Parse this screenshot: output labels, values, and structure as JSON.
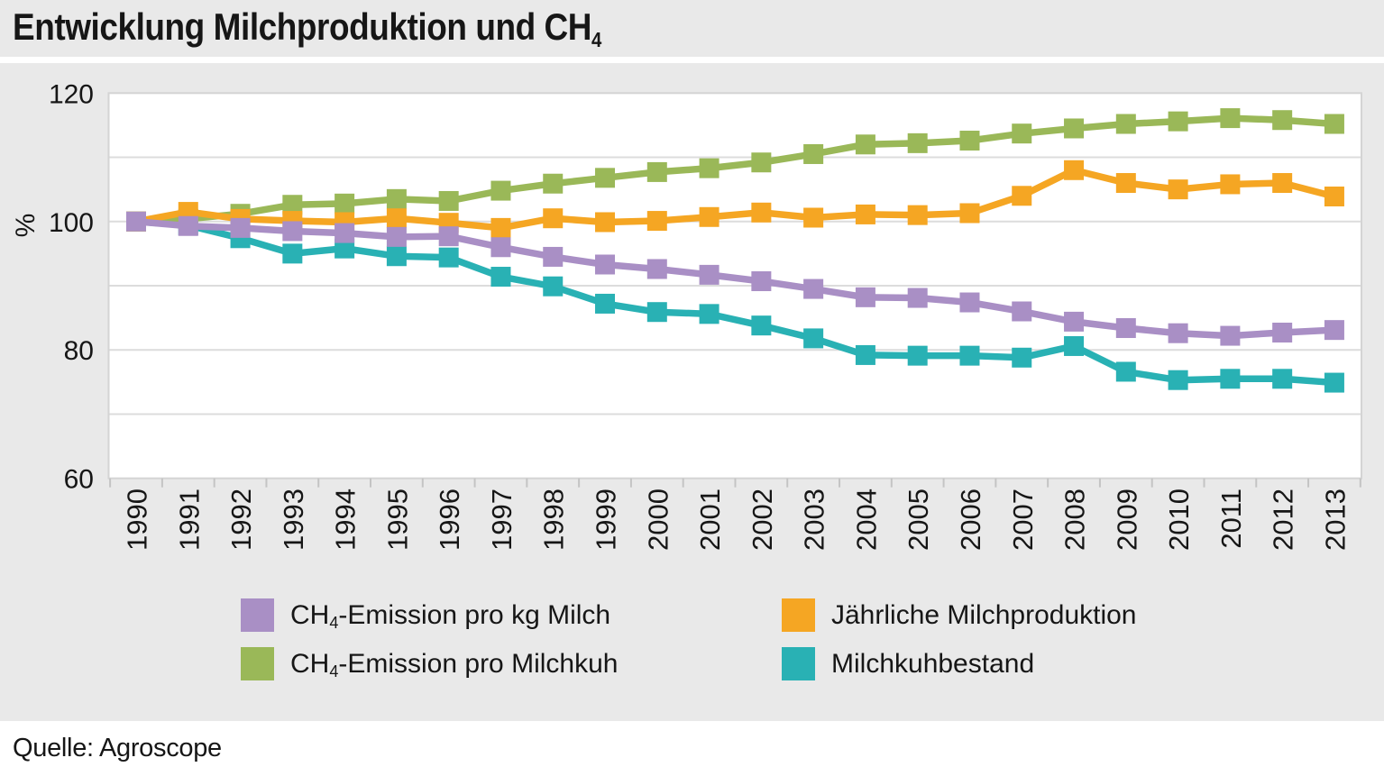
{
  "page": {
    "title_main": "Entwicklung Milchproduktion und CH",
    "title_sub": "4",
    "source": "Quelle: Agroscope"
  },
  "axes": {
    "y_unit": "%",
    "y_tick_labels": [
      120,
      100,
      80,
      60
    ],
    "y_min": 60,
    "y_max": 120,
    "y_grid_step": 10,
    "x_labels_rotated": true
  },
  "colors": {
    "background": "#e9e9e9",
    "plot_background": "#ffffff",
    "gridline": "#dcdcdc",
    "plot_border": "#d4d4d4",
    "tick": "#c4c4c4",
    "purple": "#a98fc5",
    "green": "#9ab858",
    "orange": "#f5a623",
    "teal": "#29b1b4"
  },
  "legend": [
    {
      "series": "ch4_pro_kg_milch",
      "color": "#a98fc5",
      "pre": "CH",
      "sub": "4",
      "post": "-Emission pro kg Milch"
    },
    {
      "series": "ch4_pro_milchkuh",
      "color": "#9ab858",
      "pre": "CH",
      "sub": "4",
      "post": "-Emission pro Milchkuh"
    },
    {
      "series": "milchproduktion",
      "color": "#f5a623",
      "pre": "Jährliche Milchproduktion",
      "sub": "",
      "post": ""
    },
    {
      "series": "milchkuhbestand",
      "color": "#29b1b4",
      "pre": "Milchkuhbestand",
      "sub": "",
      "post": ""
    }
  ],
  "chart_data": {
    "type": "line",
    "title": "Entwicklung Milchproduktion und CH4",
    "xlabel": "",
    "ylabel": "%",
    "ylim": [
      60,
      120
    ],
    "grid": true,
    "legend_position": "bottom",
    "marker": "square",
    "x": [
      1990,
      1991,
      1992,
      1993,
      1994,
      1995,
      1996,
      1997,
      1998,
      1999,
      2000,
      2001,
      2002,
      2003,
      2004,
      2005,
      2006,
      2007,
      2008,
      2009,
      2010,
      2011,
      2012,
      2013
    ],
    "series": [
      {
        "name": "CH4-Emission pro kg Milch",
        "color": "#a98fc5",
        "values": [
          100,
          99.3,
          99.0,
          98.5,
          98.2,
          97.6,
          97.7,
          96.0,
          94.5,
          93.3,
          92.6,
          91.7,
          90.7,
          89.5,
          88.2,
          88.1,
          87.4,
          86.0,
          84.4,
          83.4,
          82.6,
          82.2,
          82.7,
          83.1
        ]
      },
      {
        "name": "CH4-Emission pro Milchkuh",
        "color": "#9ab858",
        "values": [
          100,
          100.4,
          101.2,
          102.6,
          102.8,
          103.5,
          103.2,
          104.8,
          105.9,
          106.8,
          107.7,
          108.3,
          109.2,
          110.5,
          112.0,
          112.2,
          112.6,
          113.7,
          114.5,
          115.2,
          115.6,
          116.1,
          115.8,
          115.2
        ]
      },
      {
        "name": "Jährliche Milchproduktion",
        "color": "#f5a623",
        "values": [
          100,
          101.5,
          100.4,
          100.1,
          99.9,
          100.5,
          99.8,
          99.0,
          100.5,
          99.9,
          100.1,
          100.7,
          101.4,
          100.6,
          101.1,
          101.0,
          101.3,
          104.0,
          108.0,
          106.0,
          105.0,
          105.8,
          106.0,
          103.9
        ]
      },
      {
        "name": "Milchkuhbestand",
        "color": "#29b1b4",
        "values": [
          100,
          99.4,
          97.4,
          95.0,
          95.8,
          94.6,
          94.4,
          91.4,
          89.9,
          87.2,
          85.9,
          85.6,
          83.8,
          81.8,
          79.2,
          79.1,
          79.1,
          78.8,
          80.6,
          76.6,
          75.3,
          75.5,
          75.5,
          74.9
        ]
      }
    ],
    "draw_order": [
      3,
      1,
      2,
      0
    ]
  }
}
